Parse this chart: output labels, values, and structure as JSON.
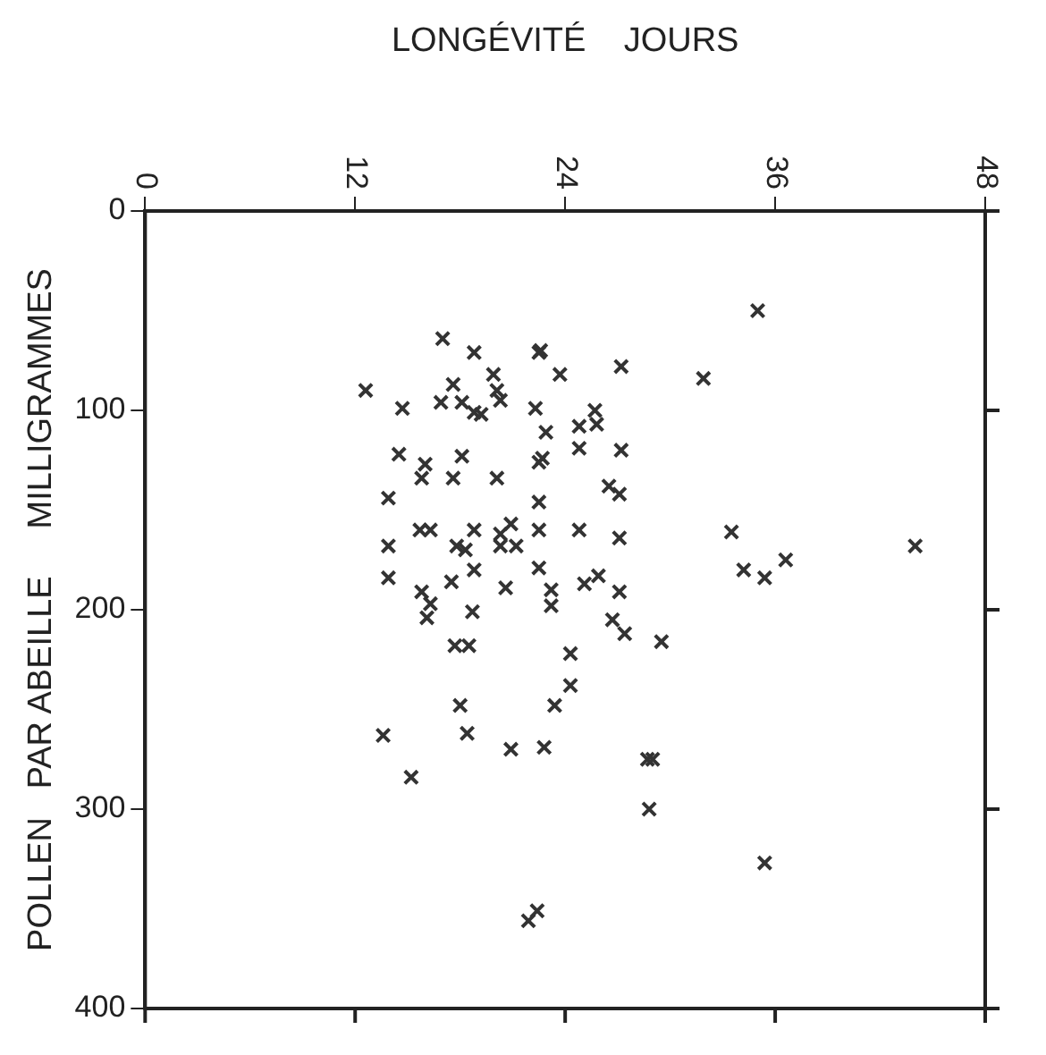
{
  "chart_data": {
    "type": "scatter",
    "xlabel": "LONGÉVITÉ    JOURS",
    "ylabel": "POLLEN   PAR ABEILLE     MILLIGRAMMES",
    "marker": "cross",
    "grid": false,
    "legend": false,
    "xlim": [
      0,
      48
    ],
    "xticks": [
      0,
      12,
      24,
      36,
      48
    ],
    "ylim": [
      400,
      0
    ],
    "yticks": [
      0,
      100,
      200,
      300,
      400
    ],
    "series": [
      {
        "color": "#333333",
        "x": [
          35.0,
          17.0,
          22.5,
          22.6,
          18.8,
          27.2,
          23.7,
          19.9,
          31.9,
          12.6,
          17.6,
          20.1,
          14.7,
          16.9,
          18.1,
          18.8,
          20.3,
          22.3,
          19.2,
          25.7,
          24.8,
          25.8,
          27.2,
          22.9,
          22.7,
          22.5,
          24.8,
          14.5,
          16.0,
          18.1,
          15.8,
          17.6,
          20.1,
          13.9,
          22.5,
          26.5,
          27.1,
          15.7,
          13.9,
          16.3,
          18.8,
          20.3,
          20.9,
          22.5,
          24.8,
          27.1,
          17.8,
          18.3,
          20.3,
          21.2,
          22.5,
          33.5,
          34.2,
          35.4,
          36.6,
          44.0,
          13.9,
          15.8,
          17.5,
          18.8,
          20.6,
          23.2,
          25.1,
          25.9,
          27.1,
          16.3,
          16.1,
          18.7,
          23.2,
          26.7,
          27.4,
          29.5,
          17.7,
          18.5,
          24.3,
          24.3,
          23.4,
          18.0,
          13.6,
          18.4,
          20.9,
          22.8,
          28.7,
          29.0,
          15.2,
          28.8,
          35.4,
          21.9,
          22.4
        ],
        "values": [
          50,
          64,
          71,
          70,
          71,
          78,
          82,
          82,
          84,
          90,
          87,
          90,
          99,
          96,
          96,
          101,
          95,
          99,
          102,
          100,
          108,
          107,
          120,
          111,
          124,
          126,
          119,
          122,
          127,
          123,
          134,
          134,
          134,
          144,
          146,
          138,
          142,
          160,
          168,
          160,
          160,
          162,
          157,
          160,
          160,
          164,
          168,
          170,
          168,
          168,
          179,
          161,
          180,
          184,
          175,
          168,
          184,
          191,
          186,
          180,
          189,
          190,
          187,
          183,
          191,
          197,
          204,
          201,
          198,
          205,
          212,
          216,
          218,
          218,
          222,
          238,
          248,
          248,
          263,
          262,
          270,
          269,
          275,
          275,
          284,
          300,
          327,
          356,
          351
        ]
      }
    ]
  }
}
